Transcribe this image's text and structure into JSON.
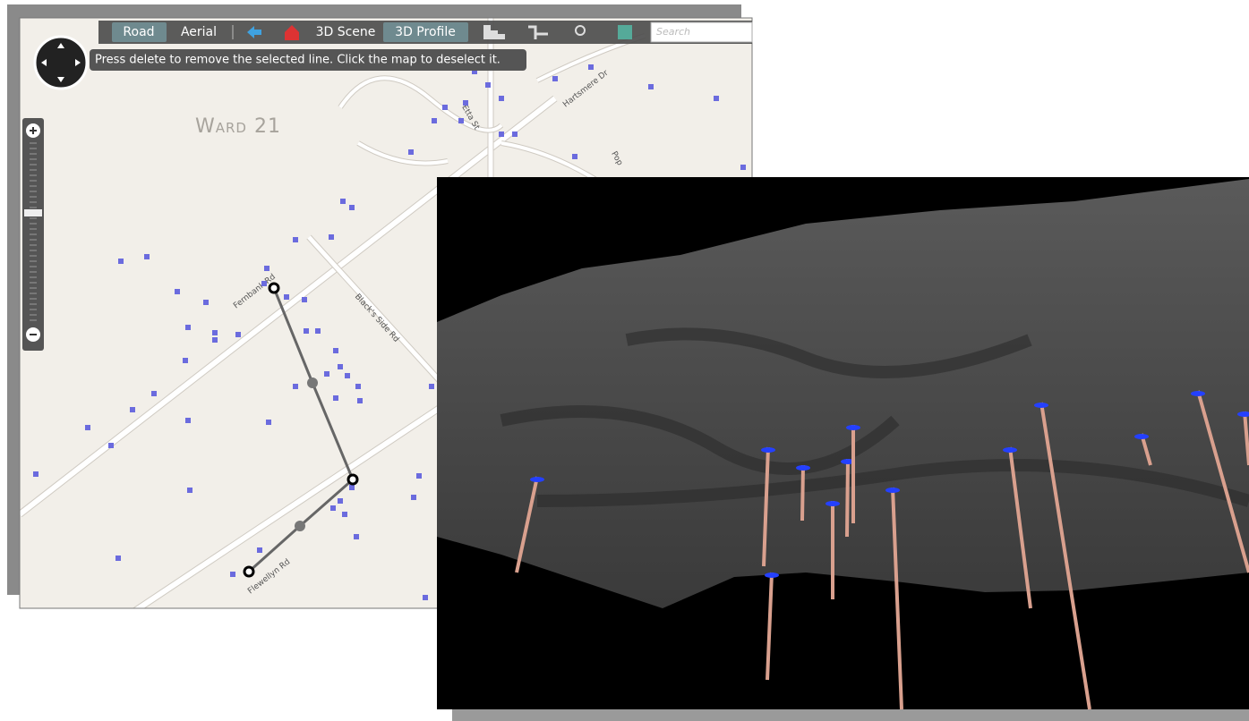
{
  "toolbar": {
    "buttons": [
      "Road",
      "Aerial",
      "3D Scene",
      "3D Profile"
    ],
    "search_placeholder": "Search"
  },
  "tooltip": "Press delete to remove the selected line. Click the map to deselect it.",
  "map": {
    "ward_label": "Ward 21",
    "street_labels": [
      "Fernbank Rd",
      "Black's Side Rd",
      "Flewellyn Rd",
      "Hartsmere Dr",
      "Etta St",
      "Pop"
    ]
  }
}
